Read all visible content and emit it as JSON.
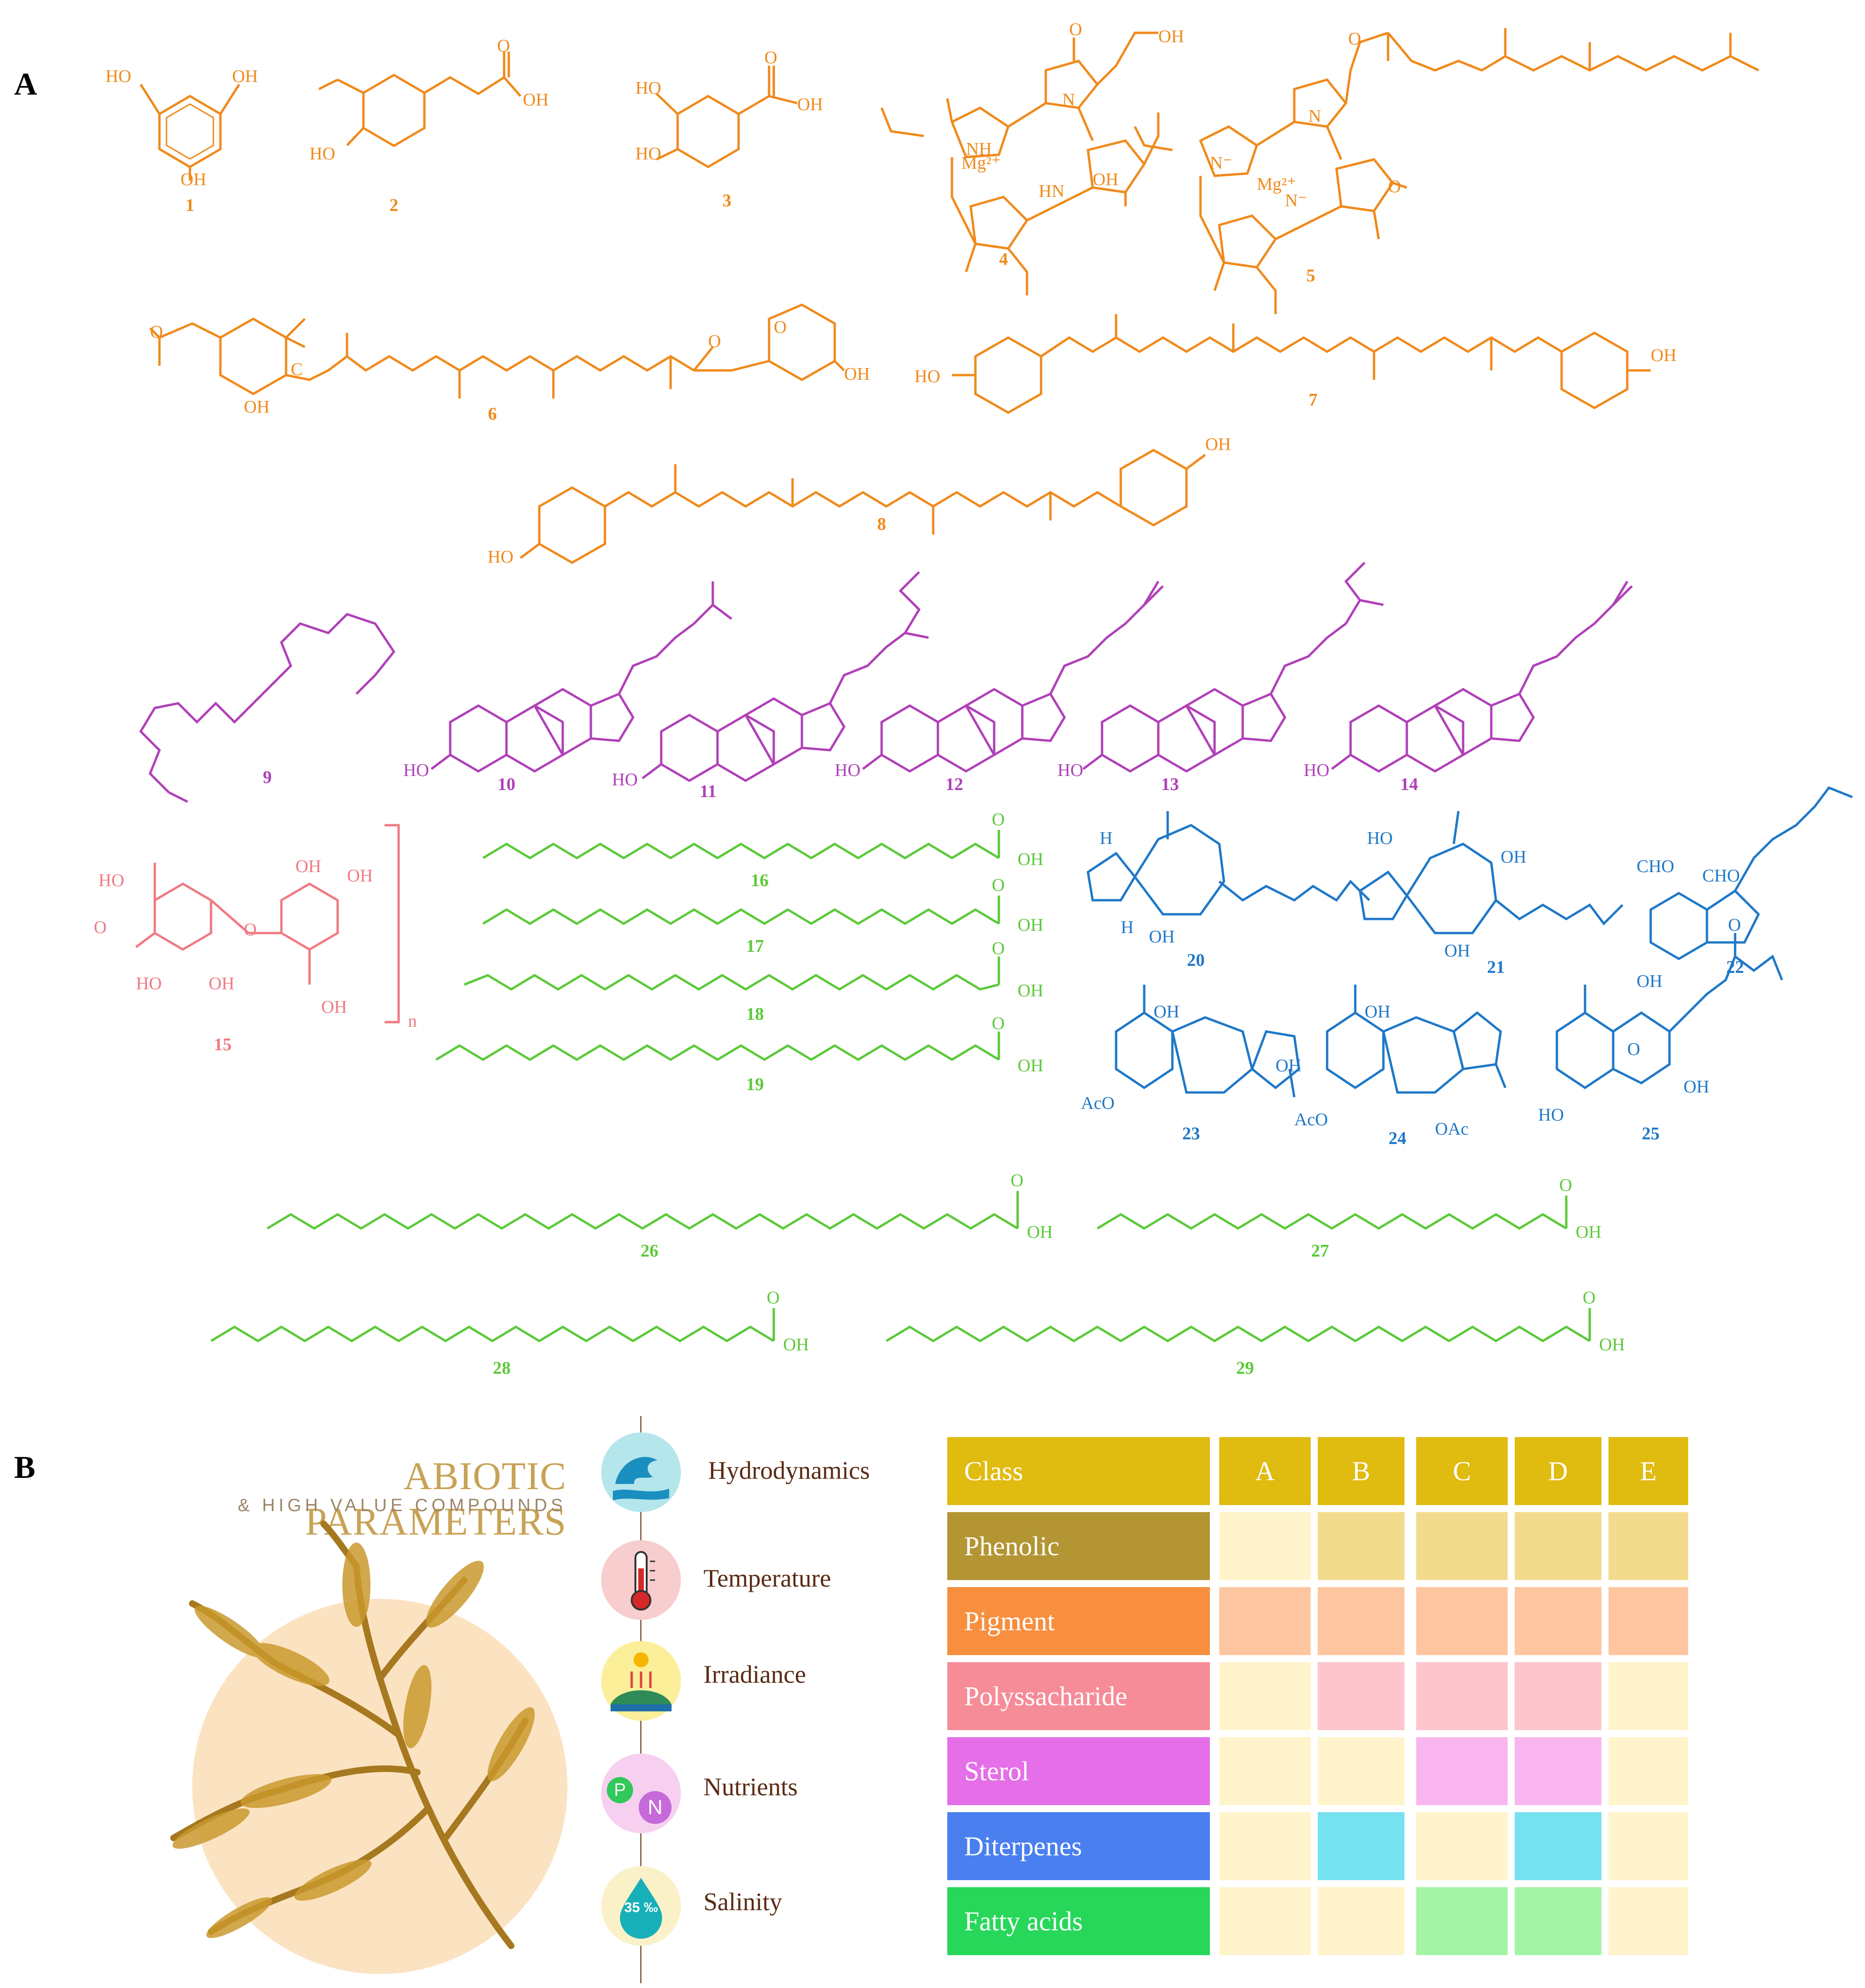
{
  "panels": {
    "a": "A",
    "b": "B"
  },
  "compound_numbers": [
    "1",
    "2",
    "3",
    "4",
    "5",
    "6",
    "7",
    "8",
    "9",
    "10",
    "11",
    "12",
    "13",
    "14",
    "15",
    "16",
    "17",
    "18",
    "19",
    "20",
    "21",
    "22",
    "23",
    "24",
    "25",
    "26",
    "27",
    "28",
    "29"
  ],
  "atom_labels": {
    "ho": "HO",
    "oh": "OH",
    "o": "O",
    "n": "N",
    "nh": "NH",
    "hn": "HN",
    "mg": "Mg²⁺",
    "n_minus": "N⁻",
    "h": "H",
    "cho": "CHO",
    "aco": "AcO",
    "oac": "OAc",
    "c": "C",
    "n_sub": "n"
  },
  "colors": {
    "phenolic_pigment_structures": "#f08a1c",
    "sterol_structures": "#b040b8",
    "polysaccharide_structure": "#f07a82",
    "fatty_acid_structures": "#5cc93a",
    "diterpene_structures": "#1f78c8",
    "title_gold": "#c8a255",
    "label_brown": "#5a2a14"
  },
  "panel_b": {
    "title": "ABIOTIC PARAMETERS",
    "subtitle": "& HIGH VALUE COMPOUNDS",
    "parameters": [
      {
        "label": "Hydrodynamics",
        "icon": "wave-icon"
      },
      {
        "label": "Temperature",
        "icon": "thermometer-icon"
      },
      {
        "label": "Irradiance",
        "icon": "sun-earth-icon"
      },
      {
        "label": "Nutrients",
        "icon": "pn-icon",
        "icon_text_p": "P",
        "icon_text_n": "N"
      },
      {
        "label": "Salinity",
        "icon": "salt-drop-icon",
        "icon_text": "35 ‰"
      }
    ],
    "table": {
      "header": [
        "Class",
        "A",
        "B",
        "C",
        "D",
        "E"
      ],
      "rows": [
        {
          "label": "Phenolic",
          "color": "#b39533",
          "cells": [
            "#fff4cc",
            "#f3db8e",
            "#f3db8e",
            "#f3db8e",
            "#f3db8e"
          ]
        },
        {
          "label": "Pigment",
          "color": "#f78f3f",
          "cells": [
            "#fdc6a0",
            "#fdc6a0",
            "#fdc6a0",
            "#fdc6a0",
            "#fdc6a0"
          ]
        },
        {
          "label": "Polyssacharide",
          "color": "#f58c98",
          "cells": [
            "#fff4cc",
            "#fcc6cc",
            "#fcc6cc",
            "#fcc6cc",
            "#fff4cc"
          ]
        },
        {
          "label": "Sterol",
          "color": "#e56fe8",
          "cells": [
            "#fff4cc",
            "#fff4cc",
            "#f9b6ee",
            "#f9b6ee",
            "#fff4cc"
          ]
        },
        {
          "label": "Diterpenes",
          "color": "#4a7ff0",
          "cells": [
            "#fff4cc",
            "#76e2ef",
            "#fff4cc",
            "#76e2ef",
            "#fff4cc"
          ]
        },
        {
          "label": "Fatty acids",
          "color": "#27d75a",
          "cells": [
            "#fff4cc",
            "#fff4cc",
            "#a3f5a5",
            "#a3f5a5",
            "#fff4cc"
          ]
        }
      ],
      "header_color": "#e0bb10"
    }
  }
}
